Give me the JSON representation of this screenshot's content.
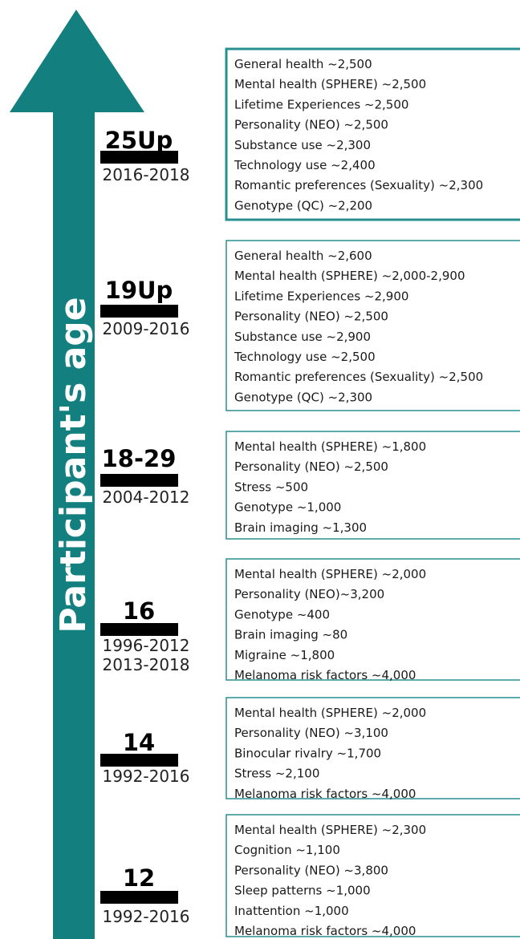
{
  "arrow_label": "Participant's age",
  "stages": [
    {
      "label": "25Up",
      "years": [
        "2016-2018"
      ],
      "items": [
        "General health ~2,500",
        "Mental health (SPHERE) ~2,500",
        "Lifetime Experiences ~2,500",
        "Personality (NEO) ~2,500",
        "Substance use ~2,300",
        "Technology use ~2,400",
        "Romantic preferences (Sexuality) ~2,300",
        "Genotype (QC) ~2,200"
      ]
    },
    {
      "label": "19Up",
      "years": [
        "2009-2016"
      ],
      "items": [
        "General health ~2,600",
        "Mental health (SPHERE) ~2,000-2,900",
        "Lifetime Experiences ~2,900",
        "Personality (NEO) ~2,500",
        "Substance use ~2,900",
        "Technology use ~2,500",
        "Romantic preferences (Sexuality) ~2,500",
        "Genotype (QC) ~2,300"
      ]
    },
    {
      "label": "18-29",
      "years": [
        "2004-2012"
      ],
      "items": [
        "Mental health (SPHERE) ~1,800",
        "Personality (NEO) ~2,500",
        "Stress ~500",
        "Genotype ~1,000",
        "Brain imaging ~1,300"
      ]
    },
    {
      "label": "16",
      "years": [
        "1996-2012",
        "2013-2018"
      ],
      "items": [
        "Mental health (SPHERE) ~2,000",
        "Personality (NEO)~3,200",
        "Genotype ~400",
        "Brain imaging ~80",
        "Migraine ~1,800",
        "Melanoma risk factors ~4,000"
      ]
    },
    {
      "label": "14",
      "years": [
        "1992-2016"
      ],
      "items": [
        "Mental health (SPHERE) ~2,000",
        "Personality (NEO) ~3,100",
        "Binocular rivalry ~1,700",
        "Stress ~2,100",
        "Melanoma risk factors ~4,000"
      ]
    },
    {
      "label": "12",
      "years": [
        "1992-2016"
      ],
      "items": [
        "Mental health (SPHERE) ~2,300",
        "Cognition ~1,100",
        "Personality (NEO) ~3,800",
        "Sleep patterns ~1,000",
        "Inattention ~1,000",
        "Melanoma risk factors ~4,000"
      ]
    }
  ]
}
